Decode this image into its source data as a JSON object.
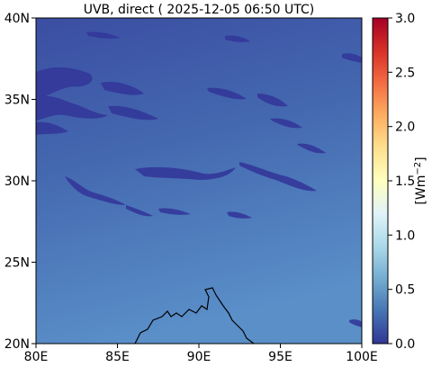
{
  "title": "UVB, direct ( 2025-12-05 06:50 UTC)",
  "map": {
    "lon_ticks": [
      "80E",
      "85E",
      "90E",
      "95E",
      "100E"
    ],
    "lat_ticks": [
      "20N",
      "25N",
      "30N",
      "35N",
      "40N"
    ],
    "lon_range": [
      80,
      100
    ],
    "lat_range": [
      20,
      40
    ]
  },
  "colorbar": {
    "label": "[Wm",
    "label_exp": "−2",
    "label_close": "]",
    "ticks": [
      "0.0",
      "0.5",
      "1.0",
      "1.5",
      "2.0",
      "2.5",
      "3.0"
    ],
    "range": [
      0,
      3.0
    ],
    "colormap": "RdYlBu_r",
    "colors": [
      "#313695",
      "#4575b4",
      "#74add1",
      "#abd9e9",
      "#e0f3f8",
      "#ffffbf",
      "#fee090",
      "#fdae61",
      "#f46d43",
      "#d73027",
      "#a50026"
    ]
  }
}
